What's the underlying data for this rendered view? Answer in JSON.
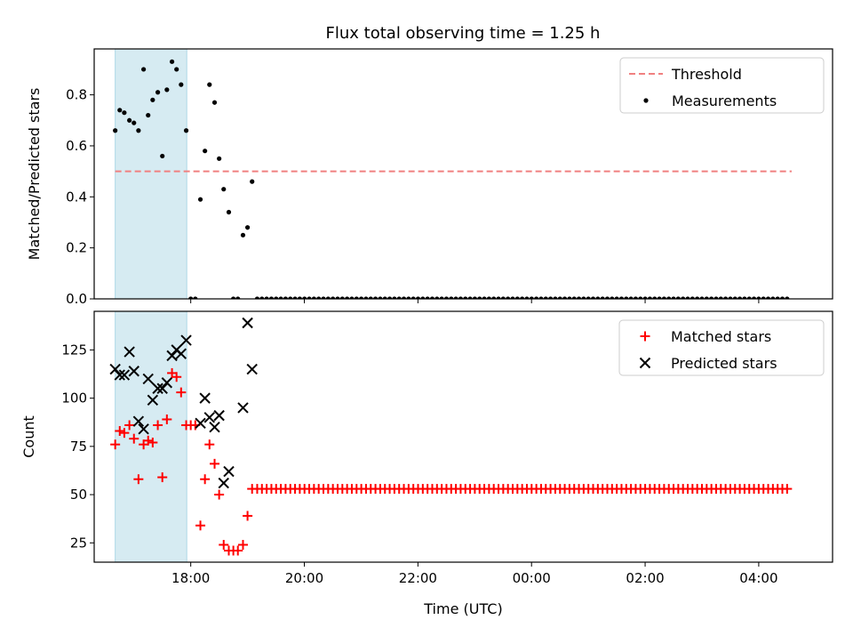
{
  "title": "Flux total observing time = 1.25 h",
  "colors": {
    "threshold": "#f08080",
    "measurements": "#000000",
    "matched": "#ff0000",
    "predicted": "#000000",
    "shade": "#add8e6"
  },
  "chart_data": [
    {
      "type": "scatter",
      "title": "Flux total observing time = 1.25 h",
      "xlabel": "",
      "ylabel": "Matched/Predicted stars",
      "x_unit": "hours since 00:00 UTC of first day",
      "xlim": [
        16.3,
        29.3
      ],
      "ylim": [
        0,
        0.98
      ],
      "yticks": [
        0.0,
        0.2,
        0.4,
        0.6,
        0.8
      ],
      "ytick_labels": [
        "0.0",
        "0.2",
        "0.4",
        "0.6",
        "0.8"
      ],
      "legend_position": "top-right",
      "shaded_x_range": [
        16.67,
        17.93
      ],
      "threshold": {
        "name": "Threshold",
        "value": 0.5,
        "x_range": [
          16.67,
          28.58
        ],
        "style": "dashed"
      },
      "series": [
        {
          "name": "Measurements",
          "marker": "dot",
          "x": [
            16.67,
            16.75,
            16.83,
            16.92,
            17.0,
            17.08,
            17.17,
            17.25,
            17.33,
            17.42,
            17.5,
            17.58,
            17.67,
            17.75,
            17.83,
            17.92,
            18.0,
            18.08,
            18.17,
            18.25,
            18.33,
            18.42,
            18.5,
            18.58,
            18.67,
            18.75,
            18.83,
            18.92,
            19.0,
            19.08
          ],
          "y": [
            0.66,
            0.74,
            0.73,
            0.7,
            0.69,
            0.66,
            0.9,
            0.72,
            0.78,
            0.81,
            0.56,
            0.82,
            0.93,
            0.9,
            0.84,
            0.66,
            0.0,
            0.0,
            0.39,
            0.58,
            0.84,
            0.77,
            0.55,
            0.43,
            0.34,
            0.0,
            0.0,
            0.25,
            0.28,
            0.46
          ],
          "flat_tail": {
            "x_start": 19.17,
            "x_end": 28.58,
            "step": 0.0833,
            "y": 0.0
          }
        }
      ]
    },
    {
      "type": "scatter",
      "title": "",
      "xlabel": "Time (UTC)",
      "ylabel": "Count",
      "x_unit": "hours since 00:00 UTC of first day",
      "xlim": [
        16.3,
        29.3
      ],
      "ylim": [
        15,
        145
      ],
      "xticks": [
        18,
        20,
        22,
        24,
        26,
        28
      ],
      "xtick_labels": [
        "18:00",
        "20:00",
        "22:00",
        "00:00",
        "02:00",
        "04:00"
      ],
      "yticks": [
        25,
        50,
        75,
        100,
        125
      ],
      "ytick_labels": [
        "25",
        "50",
        "75",
        "100",
        "125"
      ],
      "legend_position": "top-right",
      "shaded_x_range": [
        16.67,
        17.93
      ],
      "series": [
        {
          "name": "Matched stars",
          "marker": "plus",
          "x": [
            16.67,
            16.75,
            16.83,
            16.92,
            17.0,
            17.08,
            17.17,
            17.25,
            17.33,
            17.42,
            17.5,
            17.58,
            17.67,
            17.75,
            17.83,
            17.92,
            18.0,
            18.08,
            18.17,
            18.25,
            18.33,
            18.42,
            18.5,
            18.58,
            18.67,
            18.75,
            18.83,
            18.92,
            19.0,
            19.08
          ],
          "y": [
            76,
            83,
            82,
            86,
            79,
            58,
            76,
            78,
            77,
            86,
            59,
            89,
            113,
            111,
            103,
            86,
            86,
            86,
            34,
            58,
            76,
            66,
            50,
            24,
            21,
            21,
            21,
            24,
            39,
            53
          ],
          "flat_tail": {
            "x_start": 19.17,
            "x_end": 28.58,
            "step": 0.0833,
            "y": 53
          }
        },
        {
          "name": "Predicted stars",
          "marker": "x",
          "x": [
            16.67,
            16.75,
            16.83,
            16.92,
            17.0,
            17.08,
            17.17,
            17.25,
            17.33,
            17.42,
            17.5,
            17.58,
            17.67,
            17.75,
            17.83,
            17.92,
            18.17,
            18.25,
            18.33,
            18.42,
            18.5,
            18.58,
            18.67,
            18.92,
            19.0,
            19.08
          ],
          "y": [
            115,
            112,
            112,
            124,
            114,
            88,
            84,
            110,
            99,
            105,
            105,
            108,
            122,
            125,
            123,
            130,
            87,
            100,
            90,
            85,
            91,
            56,
            62,
            95,
            139,
            115
          ]
        }
      ]
    }
  ]
}
